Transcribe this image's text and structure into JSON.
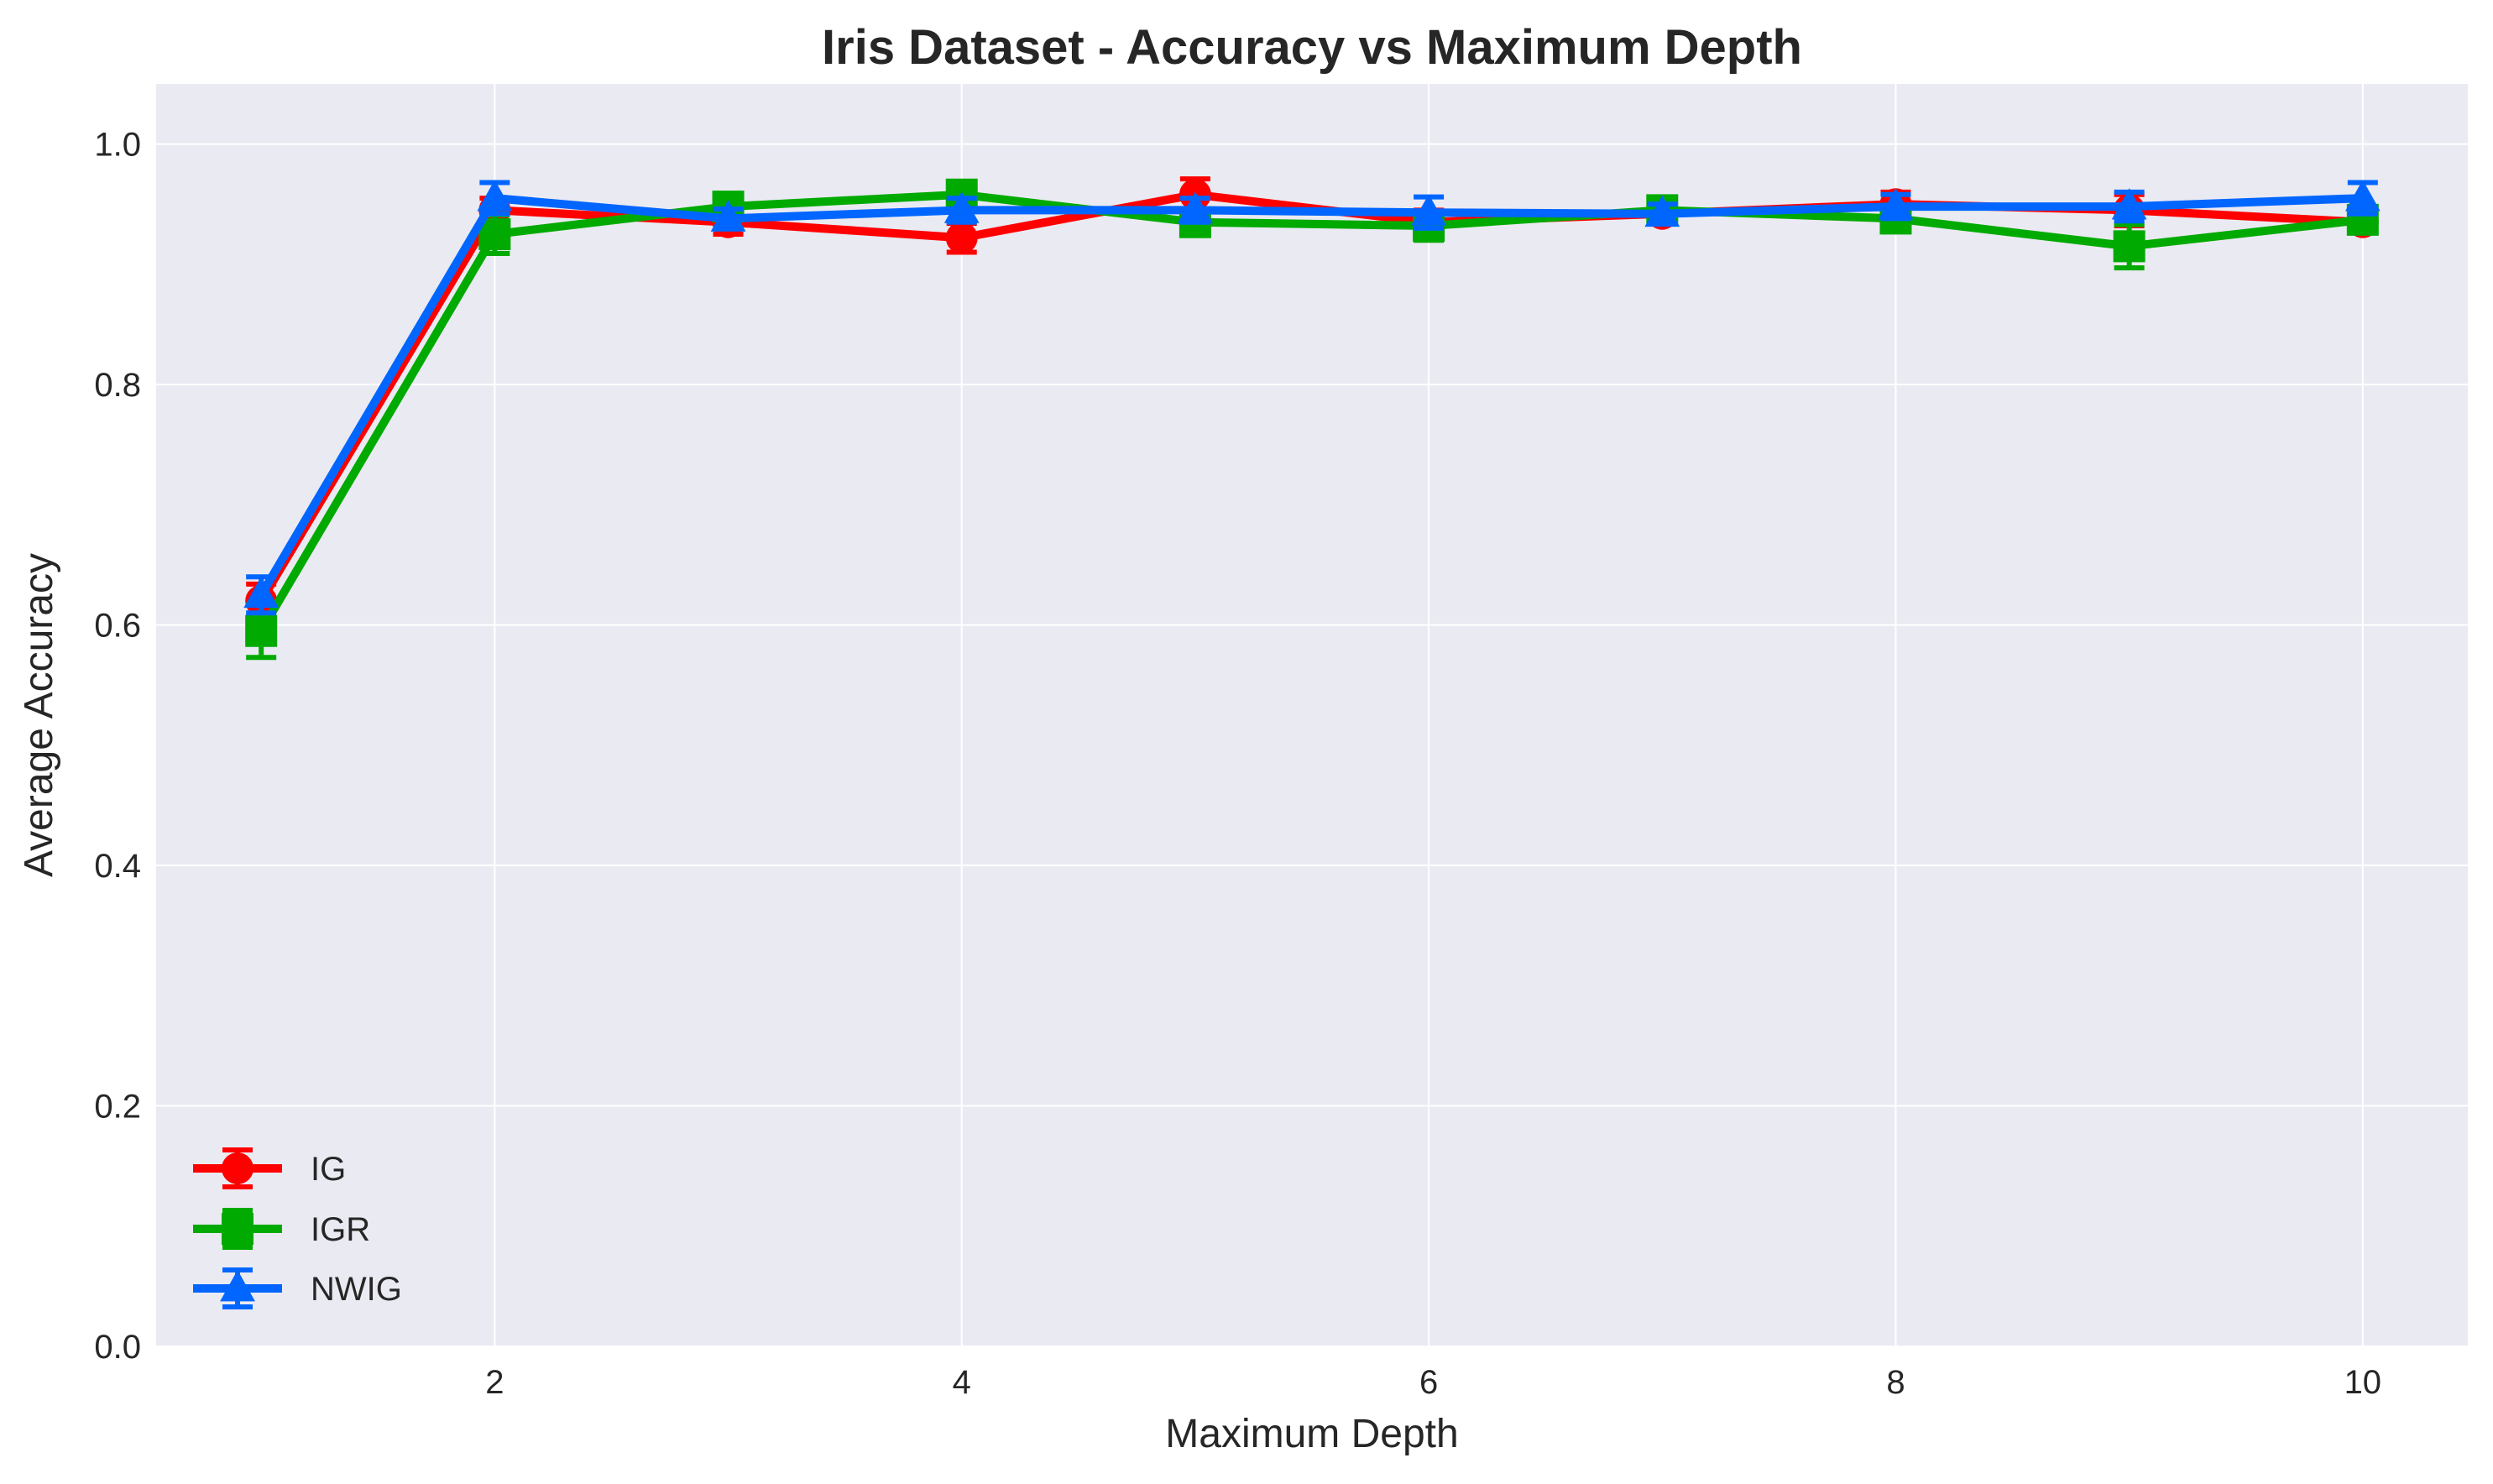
{
  "chart_data": {
    "type": "line",
    "title": "Iris Dataset - Accuracy vs Maximum Depth",
    "xlabel": "Maximum Depth",
    "ylabel": "Average Accuracy",
    "xlim": [
      0.55,
      10.45
    ],
    "ylim": [
      0.0,
      1.05
    ],
    "xticks": [
      2,
      4,
      6,
      8,
      10
    ],
    "yticks": [
      0.0,
      0.2,
      0.4,
      0.6,
      0.8,
      1.0
    ],
    "grid": true,
    "legend": "lower-left",
    "x": [
      1,
      2,
      3,
      4,
      5,
      6,
      7,
      8,
      9,
      10
    ],
    "series": [
      {
        "name": "IG",
        "color": "#ff0000",
        "marker": "circle",
        "values": [
          0.62,
          0.945,
          0.935,
          0.922,
          0.958,
          0.935,
          0.942,
          0.95,
          0.945,
          0.935
        ],
        "errors": [
          0.014,
          0.01,
          0.01,
          0.012,
          0.013,
          0.01,
          0.006,
          0.01,
          0.013,
          0.006
        ]
      },
      {
        "name": "IGR",
        "color": "#00aa00",
        "marker": "square",
        "values": [
          0.595,
          0.925,
          0.948,
          0.958,
          0.935,
          0.932,
          0.945,
          0.938,
          0.915,
          0.937
        ],
        "errors": [
          0.022,
          0.016,
          0.01,
          0.008,
          0.008,
          0.012,
          0.008,
          0.01,
          0.018,
          0.008
        ]
      },
      {
        "name": "NWIG",
        "color": "#0066ff",
        "marker": "triangle",
        "values": [
          0.625,
          0.955,
          0.938,
          0.945,
          0.945,
          0.943,
          0.942,
          0.948,
          0.948,
          0.955
        ],
        "errors": [
          0.015,
          0.013,
          0.008,
          0.01,
          0.01,
          0.013,
          0.008,
          0.01,
          0.012,
          0.013
        ]
      }
    ]
  }
}
